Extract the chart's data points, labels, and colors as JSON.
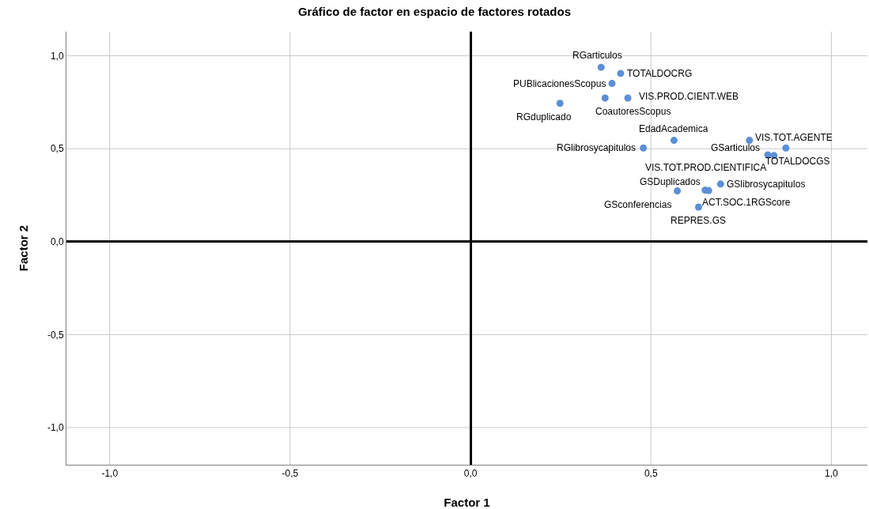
{
  "chart_data": {
    "type": "scatter",
    "title": "Gráfico de factor en espacio de factores rotados",
    "xlabel": "Factor 1",
    "ylabel": "Factor 2",
    "x": [
      0.362,
      0.416,
      0.392,
      0.373,
      0.436,
      0.248,
      0.564,
      0.773,
      0.479,
      0.824,
      0.841,
      0.874,
      0.573,
      0.65,
      0.66,
      0.693,
      0.632
    ],
    "series": [
      {
        "color": "#5b8fd6",
        "values": [
          0.938,
          0.905,
          0.851,
          0.773,
          0.773,
          0.744,
          0.545,
          0.545,
          0.504,
          0.467,
          0.463,
          0.504,
          0.273,
          0.277,
          0.275,
          0.31,
          0.186
        ]
      }
    ],
    "annotations": [
      {
        "text": "RGarticulos",
        "x": 0.362,
        "y": 0.938
      },
      {
        "text": "TOTALDOCRG",
        "x": 0.416,
        "y": 0.905
      },
      {
        "text": "PUBlicacionesScopus",
        "x": 0.392,
        "y": 0.851
      },
      {
        "text": "CoautoresScopus",
        "x": 0.373,
        "y": 0.773
      },
      {
        "text": "VIS.PROD.CIENT.WEB",
        "x": 0.436,
        "y": 0.773
      },
      {
        "text": "RGduplicado",
        "x": 0.248,
        "y": 0.744
      },
      {
        "text": "EdadAcademica",
        "x": 0.564,
        "y": 0.545
      },
      {
        "text": "VIS.TOT.AGENTE",
        "x": 0.773,
        "y": 0.545
      },
      {
        "text": "RGlibrosycapitulos",
        "x": 0.479,
        "y": 0.504
      },
      {
        "text": "GSarticulos",
        "x": 0.824,
        "y": 0.467
      },
      {
        "text": "VIS.TOT.PROD.CIENTIFICA",
        "x": 0.841,
        "y": 0.463
      },
      {
        "text": "TOTALDOCGS",
        "x": 0.874,
        "y": 0.504
      },
      {
        "text": "GSconferencias",
        "x": 0.573,
        "y": 0.273
      },
      {
        "text": "GSDuplicados",
        "x": 0.65,
        "y": 0.277
      },
      {
        "text": "ACT.SOC.1RGScore",
        "x": 0.66,
        "y": 0.275
      },
      {
        "text": "GSlibrosycapitulos",
        "x": 0.693,
        "y": 0.31
      },
      {
        "text": "REPRES.GS",
        "x": 0.632,
        "y": 0.186
      }
    ],
    "xlim": [
      -1.12,
      1.1
    ],
    "ylim": [
      -1.2,
      1.13
    ],
    "xticks": [
      {
        "value": -1,
        "label": "-1,0"
      },
      {
        "value": -0.5,
        "label": "-0,5"
      },
      {
        "value": 0,
        "label": "0,0"
      },
      {
        "value": 0.5,
        "label": "0,5"
      },
      {
        "value": 1,
        "label": "1,0"
      }
    ],
    "yticks": [
      {
        "value": -1,
        "label": "-1,0"
      },
      {
        "value": -0.5,
        "label": "-0,5"
      },
      {
        "value": 0,
        "label": "0,0"
      },
      {
        "value": 0.5,
        "label": "0,5"
      },
      {
        "value": 1,
        "label": "1,0"
      }
    ],
    "grid": true,
    "marker": "circle"
  }
}
